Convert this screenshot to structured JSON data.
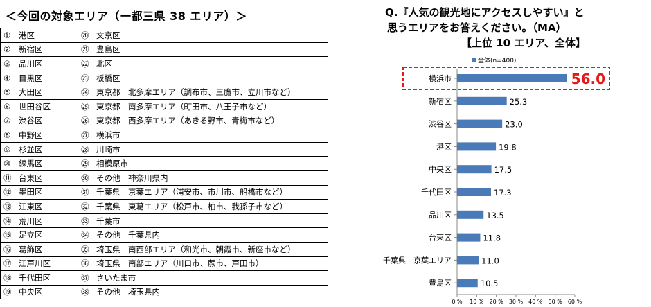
{
  "left_title": "＜今回の対象エリア（一都三県 38 エリア）＞",
  "area_table": {
    "rows": [
      {
        "n1": "①",
        "a1": "港区",
        "n2": "⑳",
        "a2": "文京区"
      },
      {
        "n1": "②",
        "a1": "新宿区",
        "n2": "㉑",
        "a2": "豊島区"
      },
      {
        "n1": "③",
        "a1": "品川区",
        "n2": "㉒",
        "a2": "北区"
      },
      {
        "n1": "④",
        "a1": "目黒区",
        "n2": "㉓",
        "a2": "板橋区"
      },
      {
        "n1": "⑤",
        "a1": "大田区",
        "n2": "㉔",
        "a2": "東京都　北多摩エリア（調布市、三鷹市、立川市など）"
      },
      {
        "n1": "⑥",
        "a1": "世田谷区",
        "n2": "㉕",
        "a2": "東京都　南多摩エリア（町田市、八王子市など）"
      },
      {
        "n1": "⑦",
        "a1": "渋谷区",
        "n2": "㉖",
        "a2": "東京都　西多摩エリア（あきる野市、青梅市など）"
      },
      {
        "n1": "⑧",
        "a1": "中野区",
        "n2": "㉗",
        "a2": "横浜市"
      },
      {
        "n1": "⑨",
        "a1": "杉並区",
        "n2": "㉘",
        "a2": "川崎市"
      },
      {
        "n1": "⑩",
        "a1": "練馬区",
        "n2": "㉙",
        "a2": "相模原市"
      },
      {
        "n1": "⑪",
        "a1": "台東区",
        "n2": "㉚",
        "a2": "その他　神奈川県内"
      },
      {
        "n1": "⑫",
        "a1": "墨田区",
        "n2": "㉛",
        "a2": "千葉県　京葉エリア（浦安市、市川市、船橋市など）"
      },
      {
        "n1": "⑬",
        "a1": "江東区",
        "n2": "㉜",
        "a2": "千葉県　東葛エリア（松戸市、柏市、我孫子市など）"
      },
      {
        "n1": "⑭",
        "a1": "荒川区",
        "n2": "㉝",
        "a2": "千葉市"
      },
      {
        "n1": "⑮",
        "a1": "足立区",
        "n2": "㉞",
        "a2": "その他　千葉県内"
      },
      {
        "n1": "⑯",
        "a1": "葛飾区",
        "n2": "㉟",
        "a2": "埼玉県　南西部エリア（和光市、朝霞市、新座市など）"
      },
      {
        "n1": "⑰",
        "a1": "江戸川区",
        "n2": "㊱",
        "a2": "埼玉県　南部エリア（川口市、蕨市、戸田市）"
      },
      {
        "n1": "⑱",
        "a1": "千代田区",
        "n2": "㊲",
        "a2": "さいたま市"
      },
      {
        "n1": "⑲",
        "a1": "中央区",
        "n2": "㊳",
        "a2": "その他　埼玉県内"
      }
    ]
  },
  "question": {
    "line1": "Q.『人気の観光地にアクセスしやすい』と",
    "line2": "思うエリアをお答えください。（MA）",
    "line3": "【上位 10 エリア、全体】"
  },
  "chart_data": {
    "type": "bar",
    "orientation": "horizontal",
    "categories": [
      "横浜市",
      "新宿区",
      "渋谷区",
      "港区",
      "中央区",
      "千代田区",
      "品川区",
      "台東区",
      "千葉県　京葉エリア",
      "豊島区"
    ],
    "series": [
      {
        "name": "全体(n=400)",
        "values": [
          56.0,
          25.3,
          23.0,
          19.8,
          17.5,
          17.3,
          13.5,
          11.8,
          11.0,
          10.5
        ]
      }
    ],
    "value_labels": [
      "56.0",
      "25.3",
      "23.0",
      "19.8",
      "17.5",
      "17.3",
      "13.5",
      "11.8",
      "11.0",
      "10.5"
    ],
    "xlim": [
      0,
      60
    ],
    "xticks": [
      "0 %",
      "10 %",
      "20 %",
      "30 %",
      "40 %",
      "50 %",
      "60 %"
    ],
    "highlight_index": 0,
    "legend_position": "top-left",
    "colors": {
      "bar": "#4a7ab8",
      "highlight": "#e11919",
      "axis": "#888888"
    }
  }
}
